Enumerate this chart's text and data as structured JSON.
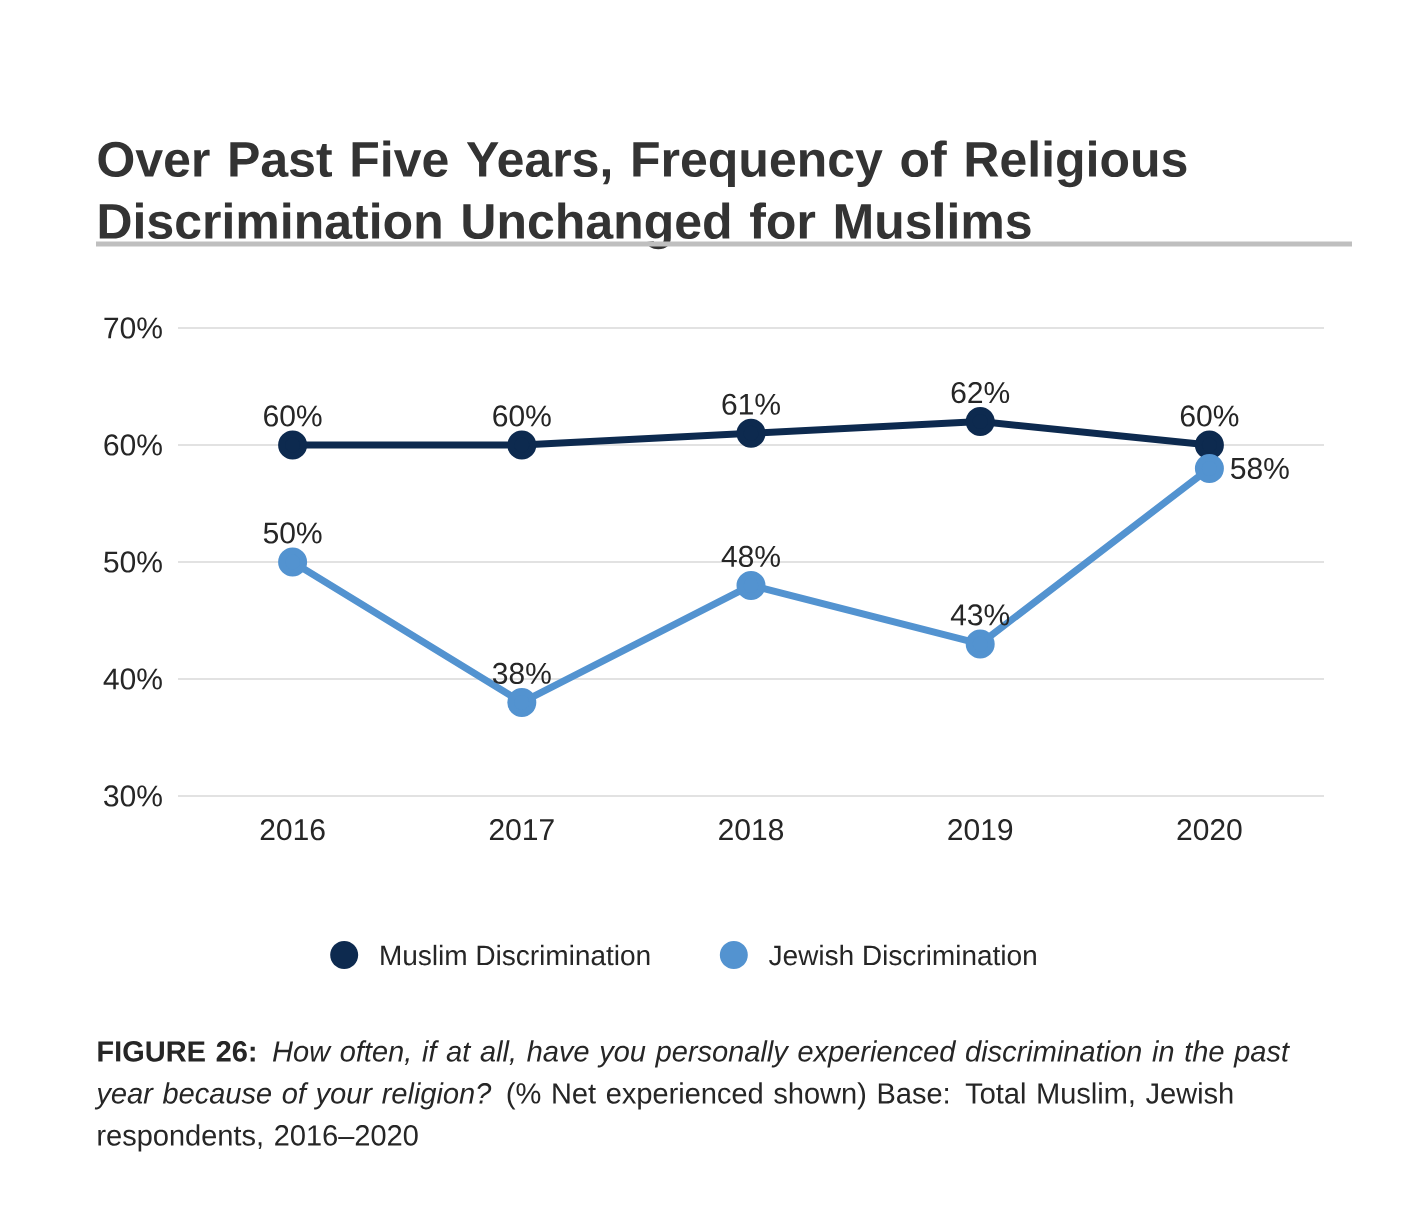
{
  "chart_data": {
    "type": "line",
    "title": "Over Past Five Years, Frequency of Religious Discrimination Unchanged for Muslims",
    "categories": [
      "2016",
      "2017",
      "2018",
      "2019",
      "2020"
    ],
    "series": [
      {
        "name": "Muslim Discrimination",
        "color": "#0d2a4f",
        "values": [
          60,
          60,
          61,
          62,
          60
        ],
        "value_labels": [
          "60%",
          "60%",
          "61%",
          "62%",
          "60%"
        ]
      },
      {
        "name": "Jewish Discrimination",
        "color": "#5393d0",
        "values": [
          50,
          38,
          48,
          43,
          58
        ],
        "value_labels": [
          "50%",
          "38%",
          "48%",
          "43%",
          "58%"
        ]
      }
    ],
    "ylim": [
      30,
      70
    ],
    "yticks": [
      {
        "value": 30,
        "label": "30%"
      },
      {
        "value": 40,
        "label": "40%"
      },
      {
        "value": 50,
        "label": "50%"
      },
      {
        "value": 60,
        "label": "60%"
      },
      {
        "value": 70,
        "label": "70%"
      }
    ],
    "grid": "y",
    "legend": "bottom",
    "marker": "circle",
    "line_style": "solid",
    "annotations": [
      "**FIGURE 26:** *How often, if at all, have you personally experienced discrimination in the past year because of your religion?* (% Net experienced shown) Base: Total Muslim, Jewish respondents, 2016–2020"
    ]
  }
}
